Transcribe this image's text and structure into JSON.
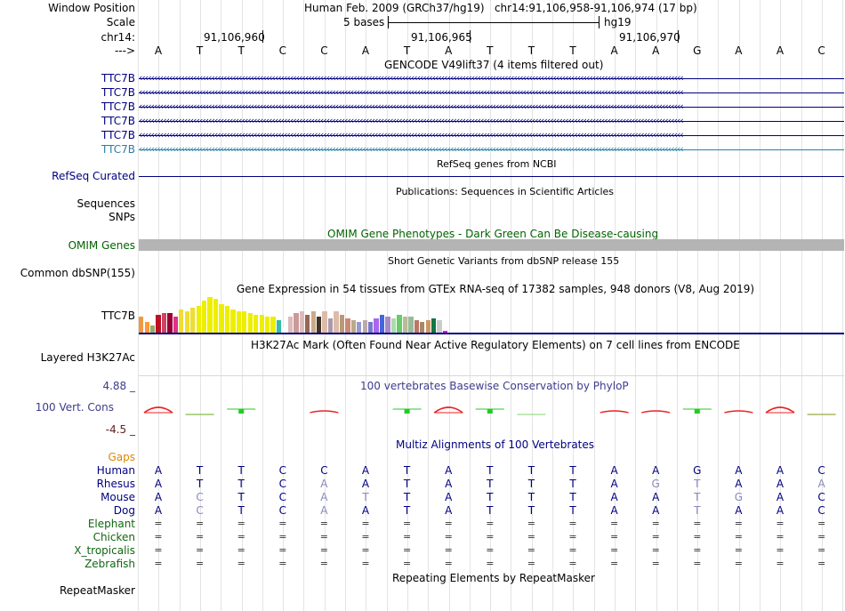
{
  "header": {
    "window_position_label": "Window Position",
    "window_position_value": "Human Feb. 2009 (GRCh37/hg19)   chr14:91,106,958-91,106,974 (17 bp)",
    "scale_label": "Scale",
    "scale_value": "5 bases",
    "scale_db": "hg19",
    "chrom_label": "chr14:",
    "coord1": "91,106,960",
    "coord2": "91,106,965",
    "coord3": "91,106,970",
    "strand_label": "--->"
  },
  "sequence": [
    "A",
    "T",
    "T",
    "C",
    "C",
    "A",
    "T",
    "A",
    "T",
    "T",
    "T",
    "A",
    "A",
    "G",
    "A",
    "A",
    "C"
  ],
  "tracks": {
    "gencode_title": "GENCODE V49lift37 (4 items filtered out)",
    "gencode_items": [
      "TTC7B",
      "TTC7B",
      "TTC7B",
      "TTC7B",
      "TTC7B",
      "TTC7B"
    ],
    "refseq_title": "RefSeq genes from NCBI",
    "refseq_label": "RefSeq Curated",
    "pubs_title": "Publications: Sequences in Scientific Articles",
    "sequences_label": "Sequences",
    "snps_label": "SNPs",
    "omim_title": "OMIM Gene Phenotypes - Dark Green Can Be Disease-causing",
    "omim_label": "OMIM Genes",
    "dbsnp_title": "Short Genetic Variants from dbSNP release 155",
    "dbsnp_label": "Common dbSNP(155)",
    "gtex_title": "Gene Expression in 54 tissues from GTEx RNA-seq of 17382 samples, 948 donors (V8, Aug 2019)",
    "gtex_label": "TTC7B",
    "h3k27_title": "H3K27Ac Mark (Often Found Near Active Regulatory Elements) on 7 cell lines from ENCODE",
    "h3k27_label": "Layered H3K27Ac",
    "cons_title": "100 vertebrates Basewise Conservation by PhyloP",
    "cons_max": "4.88 _",
    "cons_label": "100 Vert. Cons",
    "cons_min": "-4.5 _",
    "multiz_title": "Multiz Alignments of 100 Vertebrates",
    "gaps_label": "Gaps",
    "repeat_title": "Repeating Elements by RepeatMasker",
    "repeat_label": "RepeatMasker"
  },
  "gtex": {
    "values": [
      18,
      12,
      8,
      20,
      22,
      22,
      18,
      26,
      24,
      28,
      30,
      36,
      40,
      38,
      32,
      30,
      26,
      24,
      24,
      22,
      20,
      20,
      18,
      18,
      14,
      6,
      18,
      22,
      24,
      20,
      24,
      18,
      24,
      16,
      24,
      20,
      16,
      14,
      12,
      14,
      12,
      16,
      20,
      18,
      16,
      20,
      18,
      18,
      14,
      12,
      14,
      16,
      14,
      2
    ],
    "colors": [
      "#ee9944",
      "#ff9933",
      "#99aa66",
      "#bb1122",
      "#cc4466",
      "#990033",
      "#dd3388",
      "#eedd33",
      "#eedd33",
      "#eedd33",
      "#eeee00",
      "#eeee00",
      "#eeee00",
      "#eeee00",
      "#eeee00",
      "#eeee00",
      "#eeee00",
      "#eeee00",
      "#eeee00",
      "#eeee00",
      "#eeee00",
      "#eeee00",
      "#eeee00",
      "#eeee00",
      "#33bbaa",
      "#ffffff",
      "#ddbbbb",
      "#cc9999",
      "#ddbbbb",
      "#996655",
      "#ccaa88",
      "#443322",
      "#ddbbaa",
      "#aa99aa",
      "#ddbbaa",
      "#bb9977",
      "#cc8877",
      "#bbaa88",
      "#9999cc",
      "#bbaaaa",
      "#7777cc",
      "#aa66ee",
      "#4466dd",
      "#aa88cc",
      "#aaddaa",
      "#66cc66",
      "#bbbb99",
      "#99bb99",
      "#bb7766",
      "#aa8866",
      "#cc9966",
      "#117744",
      "#cccccc",
      "#ee00ee"
    ]
  },
  "phylop": {
    "segments": [
      {
        "i": 0,
        "type": "peak",
        "color": "#ee2222"
      },
      {
        "i": 1,
        "type": "flat",
        "color": "#88bb44"
      },
      {
        "i": 2,
        "type": "flatbox",
        "color": "#22cc22"
      },
      {
        "i": 4,
        "type": "hump",
        "color": "#ee2222"
      },
      {
        "i": 6,
        "type": "flatbox",
        "color": "#22cc22"
      },
      {
        "i": 7,
        "type": "peak",
        "color": "#ee2222"
      },
      {
        "i": 8,
        "type": "flatbox",
        "color": "#22cc22"
      },
      {
        "i": 9,
        "type": "flat",
        "color": "#99dd88"
      },
      {
        "i": 11,
        "type": "hump",
        "color": "#ee2222"
      },
      {
        "i": 12,
        "type": "hump",
        "color": "#ee2222"
      },
      {
        "i": 13,
        "type": "flatbox",
        "color": "#22cc22"
      },
      {
        "i": 14,
        "type": "hump",
        "color": "#ee2222"
      },
      {
        "i": 15,
        "type": "peak",
        "color": "#ee2222"
      },
      {
        "i": 16,
        "type": "flat",
        "color": "#99aa44"
      }
    ]
  },
  "multiz": [
    {
      "species": "Human",
      "bases": [
        "A",
        "T",
        "T",
        "C",
        "C",
        "A",
        "T",
        "A",
        "T",
        "T",
        "T",
        "A",
        "A",
        "G",
        "A",
        "A",
        "C"
      ],
      "dim": []
    },
    {
      "species": "Rhesus",
      "bases": [
        "A",
        "T",
        "T",
        "C",
        "A",
        "A",
        "T",
        "A",
        "T",
        "T",
        "T",
        "A",
        "G",
        "T",
        "A",
        "A",
        "A"
      ],
      "dim": [
        4,
        12,
        13,
        16
      ]
    },
    {
      "species": "Mouse",
      "bases": [
        "A",
        "C",
        "T",
        "C",
        "A",
        "T",
        "T",
        "A",
        "T",
        "T",
        "T",
        "A",
        "A",
        "T",
        "G",
        "A",
        "C"
      ],
      "dim": [
        1,
        4,
        5,
        13,
        14
      ]
    },
    {
      "species": "Dog",
      "bases": [
        "A",
        "C",
        "T",
        "C",
        "A",
        "A",
        "T",
        "A",
        "T",
        "T",
        "T",
        "A",
        "A",
        "T",
        "A",
        "A",
        "C"
      ],
      "dim": [
        1,
        4,
        13
      ]
    },
    {
      "species": "Elephant",
      "bases": [
        "=",
        "=",
        "=",
        "=",
        "=",
        "=",
        "=",
        "=",
        "=",
        "=",
        "=",
        "=",
        "=",
        "=",
        "=",
        "=",
        "="
      ],
      "dim": []
    },
    {
      "species": "Chicken",
      "bases": [
        "=",
        "=",
        "=",
        "=",
        "=",
        "=",
        "=",
        "=",
        "=",
        "=",
        "=",
        "=",
        "=",
        "=",
        "=",
        "=",
        "="
      ],
      "dim": []
    },
    {
      "species": "X_tropicalis",
      "bases": [
        "=",
        "=",
        "=",
        "=",
        "=",
        "=",
        "=",
        "=",
        "=",
        "=",
        "=",
        "=",
        "=",
        "=",
        "=",
        "=",
        "="
      ],
      "dim": []
    },
    {
      "species": "Zebrafish",
      "bases": [
        "=",
        "=",
        "=",
        "=",
        "=",
        "=",
        "=",
        "=",
        "=",
        "=",
        "=",
        "=",
        "=",
        "=",
        "=",
        "=",
        "="
      ],
      "dim": []
    }
  ],
  "colors": {
    "navy": "#000080",
    "gencode_light": "#2a7fa8",
    "omim_green": "#006400",
    "omim_bar": "#b4b4b4",
    "gaps_orange": "#dd8800",
    "cons_blue": "#3c3c8c",
    "cons_dark": "#602020",
    "species_green": "#116611",
    "dim_base": "#8888bb"
  }
}
